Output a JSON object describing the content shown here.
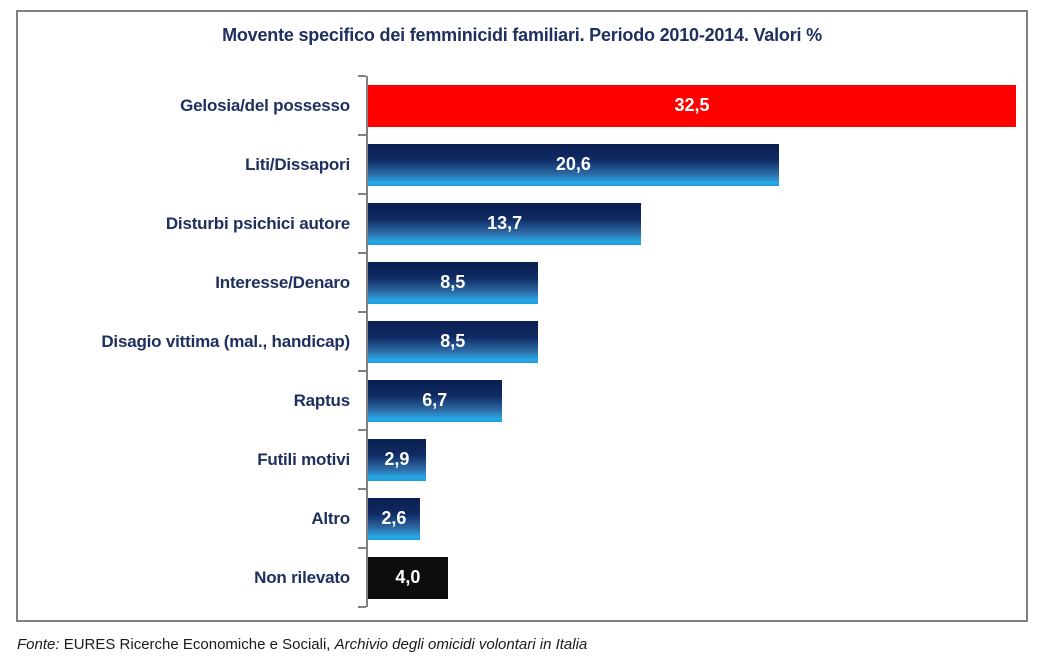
{
  "title": "Movente specifico dei femminicidi familiari. Periodo 2010-2014. Valori %",
  "footer": {
    "fonte_label": "Fonte:",
    "source_regular": " EURES Ricerche Economiche e Sociali, ",
    "source_italic": "Archivio degli omicidi volontari in Italia"
  },
  "colors": {
    "title_text": "#1F3060",
    "category_text": "#1F3060",
    "value_text": "#FFFFFF",
    "bar_red": "#FF0000",
    "bar_black": "#0D0D0D",
    "bar_blue_top": "#0A1E52",
    "bar_blue_bottom": "#1E9BDC",
    "axis_gray": "#808080"
  },
  "chart_data": {
    "type": "bar",
    "orientation": "horizontal",
    "title": "Movente specifico dei femminicidi familiari. Periodo 2010-2014. Valori %",
    "categories": [
      "Gelosia/del possesso",
      "Liti/Dissapori",
      "Disturbi psichici autore",
      "Interesse/Denaro",
      "Disagio vittima (mal., handicap)",
      "Raptus",
      "Futili motivi",
      "Altro",
      "Non rilevato"
    ],
    "values": [
      32.5,
      20.6,
      13.7,
      8.5,
      8.5,
      6.7,
      2.9,
      2.6,
      4.0
    ],
    "value_labels": [
      "32,5",
      "20,6",
      "13,7",
      "8,5",
      "8,5",
      "6,7",
      "2,9",
      "2,6",
      "4,0"
    ],
    "bar_styles": [
      "red",
      "blue",
      "blue",
      "blue",
      "blue",
      "blue",
      "blue",
      "blue",
      "black"
    ],
    "xlim": [
      0,
      33
    ],
    "grid": false,
    "legend": false,
    "source": "Fonte: EURES Ricerche Economiche e Sociali, Archivio degli omicidi volontari in Italia"
  }
}
